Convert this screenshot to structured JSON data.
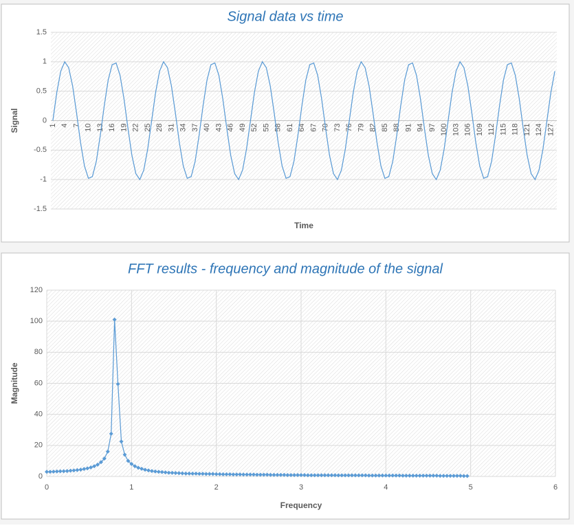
{
  "chart_data": [
    {
      "type": "line",
      "title": "Signal data vs time",
      "x_label": "Time",
      "y_label": "Signal",
      "color": "#5b9bd5",
      "grid": true,
      "categories": [
        "1",
        null,
        null,
        "4",
        null,
        null,
        "7",
        null,
        null,
        "10",
        null,
        null,
        "13",
        null,
        null,
        "16",
        null,
        null,
        "19",
        null,
        null,
        "22",
        null,
        null,
        "25",
        null,
        null,
        "28",
        null,
        null,
        "31",
        null,
        null,
        "34",
        null,
        null,
        "37",
        null,
        null,
        "40",
        null,
        null,
        "43",
        null,
        null,
        "46",
        null,
        null,
        "49",
        null,
        null,
        "52",
        null,
        null,
        "55",
        null,
        null,
        "58",
        null,
        null,
        "61",
        null,
        null,
        "64",
        null,
        null,
        "67",
        null,
        null,
        "70",
        null,
        null,
        "73",
        null,
        null,
        "76",
        null,
        null,
        "79",
        null,
        null,
        "82",
        null,
        null,
        "85",
        null,
        null,
        "88",
        null,
        null,
        "91",
        null,
        null,
        "94",
        null,
        null,
        "97",
        null,
        null,
        "100",
        null,
        null,
        "103",
        null,
        null,
        "106",
        null,
        null,
        "109",
        null,
        null,
        "112",
        null,
        null,
        "115",
        null,
        null,
        "118",
        null,
        null,
        "121",
        null,
        null,
        "124",
        null,
        null,
        "127",
        null
      ],
      "values": [
        0,
        0.48,
        0.84,
        1,
        0.9,
        0.59,
        0.13,
        -0.37,
        -0.77,
        -0.98,
        -0.95,
        -0.69,
        -0.25,
        0.25,
        0.69,
        0.95,
        0.98,
        0.77,
        0.37,
        -0.13,
        -0.59,
        -0.9,
        -1,
        -0.84,
        -0.48,
        0,
        0.48,
        0.84,
        1,
        0.9,
        0.59,
        0.13,
        -0.37,
        -0.77,
        -0.98,
        -0.95,
        -0.69,
        -0.25,
        0.25,
        0.69,
        0.95,
        0.98,
        0.77,
        0.37,
        -0.13,
        -0.59,
        -0.9,
        -1,
        -0.84,
        -0.48,
        0,
        0.48,
        0.84,
        1,
        0.9,
        0.59,
        0.13,
        -0.37,
        -0.77,
        -0.98,
        -0.95,
        -0.69,
        -0.25,
        0.25,
        0.69,
        0.95,
        0.98,
        0.77,
        0.37,
        -0.13,
        -0.59,
        -0.9,
        -1,
        -0.84,
        -0.48,
        0,
        0.48,
        0.84,
        1,
        0.9,
        0.59,
        0.13,
        -0.37,
        -0.77,
        -0.98,
        -0.95,
        -0.69,
        -0.25,
        0.25,
        0.69,
        0.95,
        0.98,
        0.77,
        0.37,
        -0.13,
        -0.59,
        -0.9,
        -1,
        -0.84,
        -0.48,
        0,
        0.48,
        0.84,
        1,
        0.9,
        0.59,
        0.13,
        -0.37,
        -0.77,
        -0.98,
        -0.95,
        -0.69,
        -0.25,
        0.25,
        0.69,
        0.95,
        0.98,
        0.77,
        0.37,
        -0.13,
        -0.59,
        -0.9,
        -1,
        -0.84,
        -0.48,
        0,
        0.48,
        0.84
      ],
      "ylim": [
        -1.5,
        1.5
      ],
      "yticks": [
        -1.5,
        -1,
        -0.5,
        0,
        0.5,
        1,
        1.5
      ]
    },
    {
      "type": "scatter",
      "title": "FFT results - frequency and magnitude of the signal",
      "x_label": "Frequency",
      "y_label": "Magnitude",
      "color": "#5b9bd5",
      "grid": true,
      "x": [
        0,
        0.04,
        0.08,
        0.12,
        0.16,
        0.2,
        0.24,
        0.28,
        0.32,
        0.36,
        0.4,
        0.44,
        0.48,
        0.52,
        0.56,
        0.6,
        0.64,
        0.68,
        0.72,
        0.76,
        0.8,
        0.84,
        0.88,
        0.92,
        0.96,
        1,
        1.04,
        1.08,
        1.12,
        1.16,
        1.2,
        1.24,
        1.28,
        1.32,
        1.36,
        1.4,
        1.44,
        1.48,
        1.52,
        1.56,
        1.6,
        1.64,
        1.68,
        1.72,
        1.76,
        1.8,
        1.84,
        1.88,
        1.92,
        1.96,
        2,
        2.04,
        2.08,
        2.12,
        2.16,
        2.2,
        2.24,
        2.28,
        2.32,
        2.36,
        2.4,
        2.44,
        2.48,
        2.52,
        2.56,
        2.6,
        2.64,
        2.68,
        2.72,
        2.76,
        2.8,
        2.84,
        2.88,
        2.92,
        2.96,
        3,
        3.04,
        3.08,
        3.12,
        3.16,
        3.2,
        3.24,
        3.28,
        3.32,
        3.36,
        3.4,
        3.44,
        3.48,
        3.52,
        3.56,
        3.6,
        3.64,
        3.68,
        3.72,
        3.76,
        3.8,
        3.84,
        3.88,
        3.92,
        3.96,
        4,
        4.04,
        4.08,
        4.12,
        4.16,
        4.2,
        4.24,
        4.28,
        4.32,
        4.36,
        4.4,
        4.44,
        4.48,
        4.52,
        4.56,
        4.6,
        4.64,
        4.68,
        4.72,
        4.76,
        4.8,
        4.84,
        4.88,
        4.92,
        4.96
      ],
      "values": [
        3,
        3,
        3.1,
        3.2,
        3.3,
        3.4,
        3.5,
        3.7,
        3.9,
        4.1,
        4.4,
        4.8,
        5.2,
        5.8,
        6.6,
        7.6,
        9.2,
        11.5,
        16,
        27.5,
        101,
        59.5,
        22.5,
        14,
        10,
        8,
        6.6,
        5.6,
        4.9,
        4.3,
        3.9,
        3.5,
        3.2,
        3,
        2.8,
        2.6,
        2.4,
        2.3,
        2.2,
        2.1,
        2,
        1.9,
        1.9,
        1.8,
        1.8,
        1.7,
        1.7,
        1.6,
        1.6,
        1.6,
        1.5,
        1.5,
        1.4,
        1.4,
        1.4,
        1.3,
        1.3,
        1.3,
        1.2,
        1.2,
        1.2,
        1.2,
        1.1,
        1.1,
        1.1,
        1.1,
        1,
        1,
        1,
        1,
        1,
        0.9,
        0.9,
        0.9,
        0.9,
        0.9,
        0.9,
        0.8,
        0.8,
        0.8,
        0.8,
        0.8,
        0.8,
        0.8,
        0.8,
        0.8,
        0.7,
        0.7,
        0.7,
        0.7,
        0.7,
        0.7,
        0.7,
        0.7,
        0.7,
        0.6,
        0.6,
        0.6,
        0.6,
        0.6,
        0.6,
        0.6,
        0.6,
        0.6,
        0.6,
        0.5,
        0.5,
        0.5,
        0.5,
        0.5,
        0.5,
        0.5,
        0.5,
        0.5,
        0.5,
        0.5,
        0.4,
        0.4,
        0.4,
        0.4,
        0.4,
        0.4,
        0.4,
        0.3,
        0.3
      ],
      "xlim": [
        0,
        6
      ],
      "xticks": [
        0,
        1,
        2,
        3,
        4,
        5,
        6
      ],
      "ylim": [
        0,
        120
      ],
      "yticks": [
        0,
        20,
        40,
        60,
        80,
        100,
        120
      ]
    }
  ]
}
